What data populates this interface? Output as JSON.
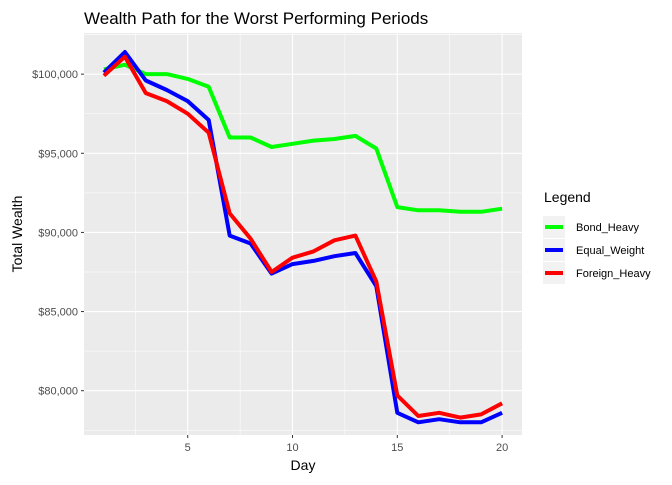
{
  "chart_data": {
    "type": "line",
    "title": "Wealth Path for the Worst Performing Periods",
    "xlabel": "Day",
    "ylabel": "Total Wealth",
    "xlim": [
      0.05,
      20.95
    ],
    "ylim": [
      77200,
      102600
    ],
    "x_ticks": [
      5,
      10,
      15,
      20
    ],
    "y_ticks": [
      80000,
      85000,
      90000,
      95000,
      100000
    ],
    "y_tick_labels": [
      "$80,000",
      "$85,000",
      "$90,000",
      "$95,000",
      "$100,000"
    ],
    "grid": true,
    "legend_title": "Legend",
    "legend_position": "right",
    "x": [
      1,
      2,
      3,
      4,
      5,
      6,
      7,
      8,
      9,
      10,
      11,
      12,
      13,
      14,
      15,
      16,
      17,
      18,
      19,
      20
    ],
    "series": [
      {
        "name": "Bond_Heavy",
        "color": "#00ff00",
        "values": [
          100300,
          100600,
          100000,
          100000,
          99700,
          99200,
          96000,
          96000,
          95400,
          95600,
          95800,
          95900,
          96100,
          95300,
          91600,
          91400,
          91400,
          91300,
          91300,
          91500
        ]
      },
      {
        "name": "Equal_Weight",
        "color": "#0000ff",
        "values": [
          100100,
          101400,
          99600,
          99000,
          98300,
          97100,
          89800,
          89300,
          87400,
          88000,
          88200,
          88500,
          88700,
          86600,
          78600,
          78000,
          78200,
          78000,
          78000,
          78600
        ]
      },
      {
        "name": "Foreign_Heavy",
        "color": "#ff0000",
        "values": [
          99900,
          101100,
          98800,
          98300,
          97500,
          96300,
          91200,
          89600,
          87500,
          88400,
          88800,
          89500,
          89800,
          86900,
          79700,
          78400,
          78600,
          78300,
          78500,
          79200
        ]
      }
    ]
  }
}
